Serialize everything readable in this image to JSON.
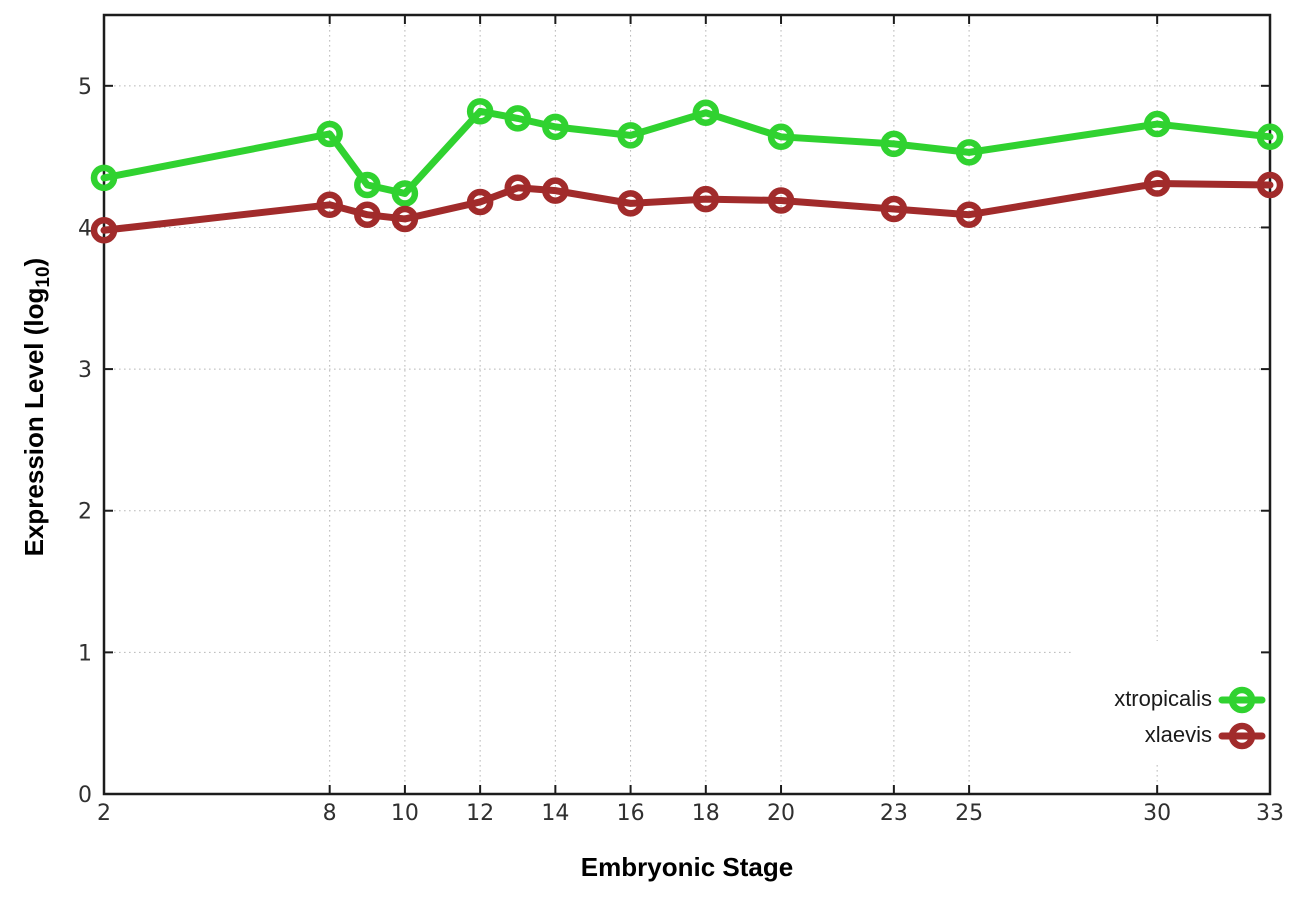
{
  "chart_data": {
    "type": "line",
    "title": "",
    "xlabel": "Embryonic Stage",
    "ylabel": "Expression Level (log10)",
    "ylabel_parts": {
      "prefix": "Expression Level (log",
      "sub": "10",
      "suffix": ")"
    },
    "x_ticks": [
      2,
      8,
      10,
      12,
      14,
      16,
      18,
      20,
      23,
      25,
      30,
      33
    ],
    "y_ticks": [
      0,
      1,
      2,
      3,
      4,
      5
    ],
    "xlim": [
      2,
      33
    ],
    "ylim": [
      0,
      5.5
    ],
    "grid": true,
    "grid_style": "dotted",
    "legend_position": "inside-bottom-right",
    "x": [
      2,
      8,
      9,
      10,
      12,
      13,
      14,
      16,
      18,
      20,
      23,
      25,
      30,
      33
    ],
    "series": [
      {
        "name": "xtropicalis",
        "color": "#30d230",
        "marker": "open-circle",
        "values": [
          4.35,
          4.66,
          4.3,
          4.24,
          4.82,
          4.77,
          4.71,
          4.65,
          4.81,
          4.64,
          4.59,
          4.53,
          4.73,
          4.64
        ]
      },
      {
        "name": "xlaevis",
        "color": "#a12b2b",
        "marker": "open-circle",
        "values": [
          3.98,
          4.16,
          4.09,
          4.06,
          4.18,
          4.28,
          4.26,
          4.17,
          4.2,
          4.19,
          4.13,
          4.09,
          4.31,
          4.3
        ]
      }
    ],
    "colors": {
      "background": "#ffffff",
      "grid": "#b8b8b8",
      "axis": "#1c1c1c",
      "tick_label": "#303030",
      "legend_background": "#ffffff"
    }
  }
}
